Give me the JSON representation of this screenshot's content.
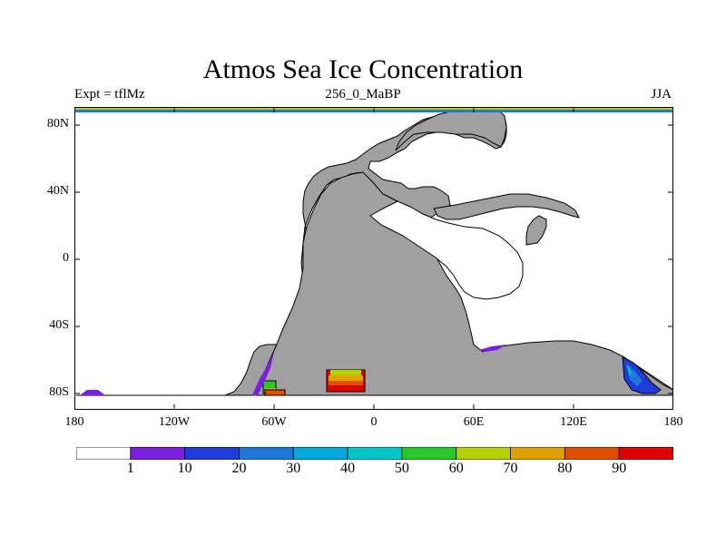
{
  "title": "Atmos Sea Ice Concentration",
  "experiment": "Expt = tflMz",
  "timeslice": "256_0_MaBP",
  "season": "JJA",
  "map": {
    "land_color": "#a0a0a0",
    "lat_ticks": [
      "80N",
      "40N",
      "0",
      "40S",
      "80S"
    ],
    "lon_ticks": [
      "180",
      "120W",
      "60W",
      "0",
      "60E",
      "120E",
      "180"
    ]
  },
  "colorbar": {
    "colors": [
      "#ffffff",
      "#7a1ee0",
      "#1e3cdc",
      "#1e78dc",
      "#00aadc",
      "#00c8c8",
      "#28c828",
      "#b4d200",
      "#e0a000",
      "#e05000",
      "#e00000"
    ],
    "labels": [
      "1",
      "10",
      "20",
      "30",
      "40",
      "50",
      "60",
      "70",
      "80",
      "90"
    ]
  }
}
